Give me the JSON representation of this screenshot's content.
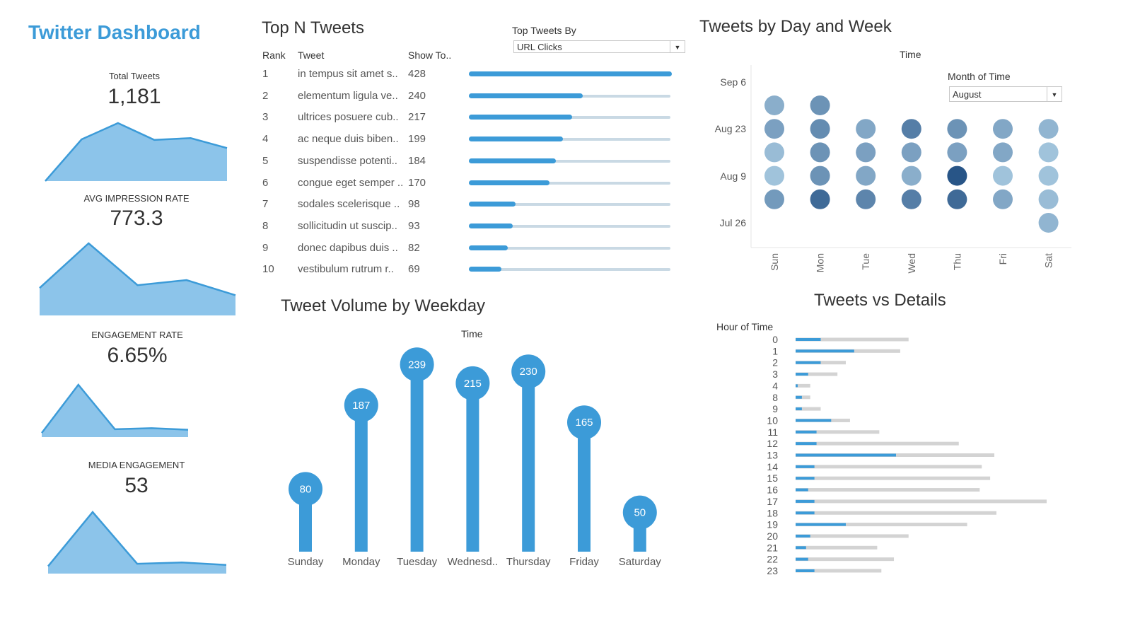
{
  "dashboard": {
    "title": "Twitter Dashboard",
    "accent": "#3c9bd8"
  },
  "kpis": [
    {
      "label": "Total Tweets",
      "value": "1,181",
      "spark": [
        0.0,
        0.72,
        1.0,
        0.71,
        0.74,
        0.57
      ]
    },
    {
      "label": "AVG IMPRESSION RATE",
      "value": "773.3",
      "spark": [
        0.38,
        1.0,
        0.42,
        0.49,
        0.28
      ]
    },
    {
      "label": "ENGAGEMENT RATE",
      "value": "6.65%",
      "spark": [
        0.08,
        1.0,
        0.15,
        0.17,
        0.14
      ]
    },
    {
      "label": "MEDIA ENGAGEMENT",
      "value": "53",
      "spark": [
        0.12,
        1.0,
        0.16,
        0.18,
        0.14
      ]
    }
  ],
  "top_tweets": {
    "title": "Top N Tweets",
    "filter_label": "Top Tweets By",
    "filter_value": "URL Clicks",
    "headers": {
      "rank": "Rank",
      "tweet": "Tweet",
      "show": "Show To.."
    },
    "rows": [
      {
        "rank": "1",
        "tweet": "in tempus sit amet s..",
        "value": 428
      },
      {
        "rank": "2",
        "tweet": "elementum ligula ve..",
        "value": 240
      },
      {
        "rank": "3",
        "tweet": "ultrices posuere cub..",
        "value": 217
      },
      {
        "rank": "4",
        "tweet": "ac neque duis biben..",
        "value": 199
      },
      {
        "rank": "5",
        "tweet": "suspendisse potenti..",
        "value": 184
      },
      {
        "rank": "6",
        "tweet": "congue eget semper ..",
        "value": 170
      },
      {
        "rank": "7",
        "tweet": "sodales scelerisque ..",
        "value": 98
      },
      {
        "rank": "8",
        "tweet": "sollicitudin ut suscip..",
        "value": 93
      },
      {
        "rank": "9",
        "tweet": "donec dapibus duis ..",
        "value": 82
      },
      {
        "rank": "10",
        "tweet": "vestibulum rutrum r..",
        "value": 69
      }
    ]
  },
  "chart_data": [
    {
      "type": "bar",
      "title": "Tweet Volume by Weekday",
      "xlabel": "Time",
      "categories": [
        "Sunday",
        "Monday",
        "Tuesday",
        "Wednesd..",
        "Thursday",
        "Friday",
        "Saturday"
      ],
      "values": [
        80,
        187,
        239,
        215,
        230,
        165,
        50
      ],
      "ylim": [
        0,
        260
      ],
      "color": "#3c9bd8"
    },
    {
      "type": "heatmap",
      "title": "Tweets by Day and Week",
      "xlabel": "Time",
      "filter_label": "Month of Time",
      "filter_value": "August",
      "days": [
        "Sun",
        "Mon",
        "Tue",
        "Wed",
        "Thu",
        "Fri",
        "Sat"
      ],
      "week_labels": [
        "Sep 6",
        "Aug 23",
        "Aug 9",
        "Jul 26"
      ],
      "cells": [
        [
          0.35,
          0.55,
          null,
          null,
          null,
          null,
          null
        ],
        [
          0.45,
          0.6,
          0.4,
          0.7,
          0.55,
          0.4,
          0.3
        ],
        [
          0.25,
          0.55,
          0.45,
          0.45,
          0.45,
          0.4,
          0.2
        ],
        [
          0.2,
          0.55,
          0.4,
          0.35,
          1.0,
          0.2,
          0.2
        ],
        [
          0.5,
          0.85,
          0.65,
          0.7,
          0.85,
          0.4,
          0.25
        ],
        [
          null,
          null,
          null,
          null,
          null,
          null,
          0.3
        ]
      ]
    },
    {
      "type": "bar",
      "title": "Tweets vs Details",
      "ylabel": "Hour of Time",
      "categories": [
        "0",
        "1",
        "2",
        "3",
        "4",
        "8",
        "9",
        "10",
        "11",
        "12",
        "13",
        "14",
        "15",
        "16",
        "17",
        "18",
        "19",
        "20",
        "21",
        "22",
        "23"
      ],
      "values_primary": [
        12,
        28,
        12,
        6,
        1,
        3,
        3,
        17,
        10,
        10,
        48,
        9,
        9,
        6,
        9,
        9,
        24,
        7,
        5,
        6,
        9
      ],
      "values_total": [
        54,
        50,
        24,
        20,
        7,
        7,
        12,
        26,
        40,
        78,
        95,
        89,
        93,
        88,
        120,
        96,
        82,
        54,
        39,
        47,
        41
      ],
      "xlim": [
        0,
        120
      ]
    }
  ]
}
